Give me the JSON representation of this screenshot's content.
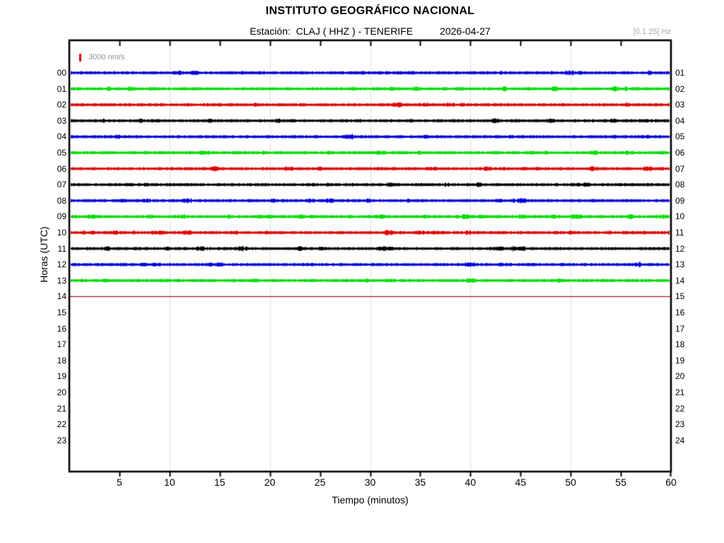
{
  "header": {
    "title": "INSTITUTO GEOGRÁFICO NACIONAL",
    "station_line": "Estación:  CLAJ ( HHZ ) - TENERIFE",
    "date": "2026-04-27",
    "filter_label": "[0.1 25] Hz"
  },
  "chart_data": {
    "type": "line",
    "subtype": "helicorder-seismogram",
    "title": "INSTITUTO GEOGRÁFICO NACIONAL",
    "station": "CLAJ ( HHZ ) - TENERIFE",
    "channel": "HHZ",
    "date": "2026-04-27",
    "filter_band": "[0.1 25] Hz",
    "scale_label": "3000 nm/s",
    "xlabel": "Tiempo (minutos)",
    "ylabel": "Horas (UTC)",
    "xlim": [
      0,
      60
    ],
    "x_ticks": [
      5,
      10,
      15,
      20,
      25,
      30,
      35,
      40,
      45,
      50,
      55,
      60
    ],
    "x_gridlines_minutes": [
      10,
      20,
      30,
      40,
      50
    ],
    "grid": "vertical-only",
    "legend_position": "top-left-inside",
    "left_hour_labels": [
      "00",
      "01",
      "02",
      "03",
      "04",
      "05",
      "06",
      "07",
      "08",
      "09",
      "10",
      "11",
      "12",
      "13",
      "14",
      "15",
      "16",
      "17",
      "18",
      "19",
      "20",
      "21",
      "22",
      "23"
    ],
    "right_hour_labels": [
      "01",
      "02",
      "03",
      "04",
      "05",
      "06",
      "07",
      "08",
      "09",
      "10",
      "11",
      "12",
      "13",
      "14",
      "15",
      "16",
      "17",
      "18",
      "19",
      "20",
      "21",
      "22",
      "23",
      "24"
    ],
    "rows": [
      {
        "hour": "00",
        "kind": "noise",
        "color": "#0000dd"
      },
      {
        "hour": "01",
        "kind": "noise",
        "color": "#00dd00"
      },
      {
        "hour": "02",
        "kind": "noise",
        "color": "#e00000"
      },
      {
        "hour": "03",
        "kind": "noise",
        "color": "#000000"
      },
      {
        "hour": "04",
        "kind": "noise",
        "color": "#0000dd"
      },
      {
        "hour": "05",
        "kind": "noise",
        "color": "#00dd00"
      },
      {
        "hour": "06",
        "kind": "noise",
        "color": "#e00000"
      },
      {
        "hour": "07",
        "kind": "noise",
        "color": "#000000"
      },
      {
        "hour": "08",
        "kind": "noise",
        "color": "#0000dd"
      },
      {
        "hour": "09",
        "kind": "noise",
        "color": "#00dd00"
      },
      {
        "hour": "10",
        "kind": "noise",
        "color": "#e00000"
      },
      {
        "hour": "11",
        "kind": "noise",
        "color": "#000000"
      },
      {
        "hour": "12",
        "kind": "noise",
        "color": "#0000dd"
      },
      {
        "hour": "13",
        "kind": "noise",
        "color": "#00dd00"
      },
      {
        "hour": "14",
        "kind": "flat",
        "color": "#aa0000"
      },
      {
        "hour": "15",
        "kind": "empty",
        "color": null
      },
      {
        "hour": "16",
        "kind": "empty",
        "color": null
      },
      {
        "hour": "17",
        "kind": "empty",
        "color": null
      },
      {
        "hour": "18",
        "kind": "empty",
        "color": null
      },
      {
        "hour": "19",
        "kind": "empty",
        "color": null
      },
      {
        "hour": "20",
        "kind": "empty",
        "color": null
      },
      {
        "hour": "21",
        "kind": "empty",
        "color": null
      },
      {
        "hour": "22",
        "kind": "empty",
        "color": null
      },
      {
        "hour": "23",
        "kind": "empty",
        "color": null
      }
    ],
    "colors": {
      "trace_cycle": [
        "#0000dd",
        "#00dd00",
        "#e00000",
        "#000000"
      ],
      "flat_line": "#aa0000",
      "grid": "#dedede",
      "frame": "#000000",
      "muted_text": "#8f8f8f"
    }
  }
}
